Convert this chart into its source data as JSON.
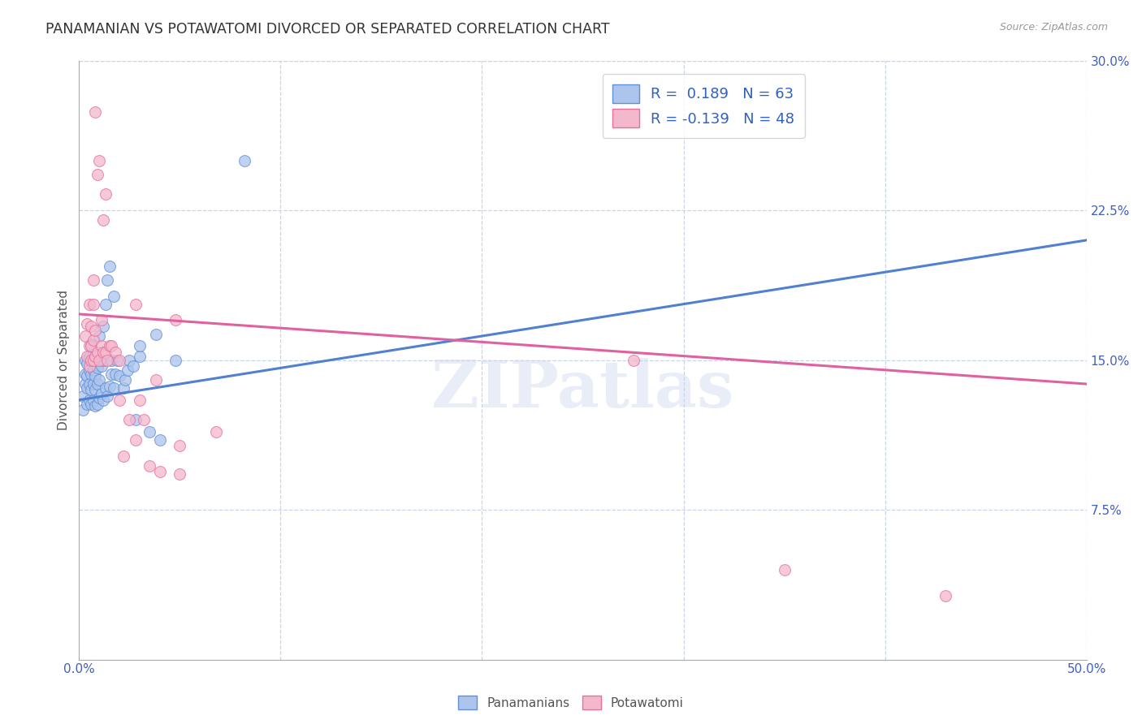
{
  "title": "PANAMANIAN VS POTAWATOMI DIVORCED OR SEPARATED CORRELATION CHART",
  "source": "Source: ZipAtlas.com",
  "ylabel": "Divorced or Separated",
  "watermark": "ZIPatlas",
  "xlim": [
    0.0,
    0.5
  ],
  "ylim": [
    0.0,
    0.3
  ],
  "yticks": [
    0.075,
    0.15,
    0.225,
    0.3
  ],
  "ytick_labels": [
    "7.5%",
    "15.0%",
    "22.5%",
    "30.0%"
  ],
  "xtick_labels": [
    "0.0%",
    "",
    "",
    "",
    "",
    "50.0%"
  ],
  "blue_R": 0.189,
  "blue_N": 63,
  "pink_R": -0.139,
  "pink_N": 48,
  "blue_fill": "#adc4ec",
  "pink_fill": "#f4b8cc",
  "blue_edge": "#6090d8",
  "pink_edge": "#e870a0",
  "blue_line": "#5080d0",
  "pink_line": "#e060a0",
  "blue_scatter": [
    [
      0.002,
      0.125
    ],
    [
      0.002,
      0.132
    ],
    [
      0.003,
      0.138
    ],
    [
      0.003,
      0.143
    ],
    [
      0.003,
      0.15
    ],
    [
      0.004,
      0.128
    ],
    [
      0.004,
      0.136
    ],
    [
      0.004,
      0.142
    ],
    [
      0.004,
      0.148
    ],
    [
      0.005,
      0.13
    ],
    [
      0.005,
      0.138
    ],
    [
      0.005,
      0.145
    ],
    [
      0.005,
      0.152
    ],
    [
      0.006,
      0.128
    ],
    [
      0.006,
      0.135
    ],
    [
      0.006,
      0.143
    ],
    [
      0.006,
      0.15
    ],
    [
      0.006,
      0.158
    ],
    [
      0.007,
      0.13
    ],
    [
      0.007,
      0.138
    ],
    [
      0.007,
      0.145
    ],
    [
      0.007,
      0.153
    ],
    [
      0.008,
      0.127
    ],
    [
      0.008,
      0.135
    ],
    [
      0.008,
      0.142
    ],
    [
      0.008,
      0.15
    ],
    [
      0.009,
      0.128
    ],
    [
      0.009,
      0.138
    ],
    [
      0.009,
      0.146
    ],
    [
      0.01,
      0.131
    ],
    [
      0.01,
      0.14
    ],
    [
      0.01,
      0.162
    ],
    [
      0.011,
      0.133
    ],
    [
      0.011,
      0.147
    ],
    [
      0.012,
      0.13
    ],
    [
      0.012,
      0.15
    ],
    [
      0.012,
      0.167
    ],
    [
      0.013,
      0.136
    ],
    [
      0.013,
      0.178
    ],
    [
      0.014,
      0.132
    ],
    [
      0.014,
      0.19
    ],
    [
      0.015,
      0.137
    ],
    [
      0.015,
      0.197
    ],
    [
      0.016,
      0.143
    ],
    [
      0.016,
      0.15
    ],
    [
      0.017,
      0.136
    ],
    [
      0.017,
      0.182
    ],
    [
      0.018,
      0.143
    ],
    [
      0.019,
      0.15
    ],
    [
      0.02,
      0.142
    ],
    [
      0.022,
      0.136
    ],
    [
      0.023,
      0.14
    ],
    [
      0.024,
      0.145
    ],
    [
      0.025,
      0.15
    ],
    [
      0.027,
      0.147
    ],
    [
      0.028,
      0.12
    ],
    [
      0.03,
      0.152
    ],
    [
      0.03,
      0.157
    ],
    [
      0.035,
      0.114
    ],
    [
      0.038,
      0.163
    ],
    [
      0.04,
      0.11
    ],
    [
      0.048,
      0.15
    ],
    [
      0.082,
      0.25
    ]
  ],
  "pink_scatter": [
    [
      0.003,
      0.162
    ],
    [
      0.004,
      0.152
    ],
    [
      0.004,
      0.168
    ],
    [
      0.005,
      0.147
    ],
    [
      0.005,
      0.157
    ],
    [
      0.005,
      0.178
    ],
    [
      0.006,
      0.15
    ],
    [
      0.006,
      0.157
    ],
    [
      0.006,
      0.167
    ],
    [
      0.007,
      0.15
    ],
    [
      0.007,
      0.16
    ],
    [
      0.007,
      0.178
    ],
    [
      0.007,
      0.19
    ],
    [
      0.008,
      0.152
    ],
    [
      0.008,
      0.165
    ],
    [
      0.008,
      0.274
    ],
    [
      0.009,
      0.154
    ],
    [
      0.009,
      0.243
    ],
    [
      0.01,
      0.15
    ],
    [
      0.01,
      0.25
    ],
    [
      0.011,
      0.157
    ],
    [
      0.011,
      0.17
    ],
    [
      0.012,
      0.154
    ],
    [
      0.012,
      0.22
    ],
    [
      0.013,
      0.154
    ],
    [
      0.013,
      0.233
    ],
    [
      0.014,
      0.15
    ],
    [
      0.015,
      0.157
    ],
    [
      0.016,
      0.157
    ],
    [
      0.018,
      0.154
    ],
    [
      0.02,
      0.15
    ],
    [
      0.02,
      0.13
    ],
    [
      0.022,
      0.102
    ],
    [
      0.025,
      0.12
    ],
    [
      0.028,
      0.178
    ],
    [
      0.028,
      0.11
    ],
    [
      0.03,
      0.13
    ],
    [
      0.032,
      0.12
    ],
    [
      0.035,
      0.097
    ],
    [
      0.038,
      0.14
    ],
    [
      0.04,
      0.094
    ],
    [
      0.048,
      0.17
    ],
    [
      0.05,
      0.093
    ],
    [
      0.05,
      0.107
    ],
    [
      0.068,
      0.114
    ],
    [
      0.275,
      0.15
    ],
    [
      0.35,
      0.045
    ],
    [
      0.43,
      0.032
    ]
  ],
  "blue_trend_x": [
    0.0,
    0.5
  ],
  "blue_trend_y": [
    0.13,
    0.21
  ],
  "pink_trend_x": [
    0.0,
    0.5
  ],
  "pink_trend_y": [
    0.173,
    0.138
  ],
  "bg": "#ffffff",
  "grid_color": "#c8d4e8",
  "title_color": "#333333",
  "tick_color": "#4060c0",
  "label_color": "#555555",
  "legend_label_color": "#3060c0"
}
